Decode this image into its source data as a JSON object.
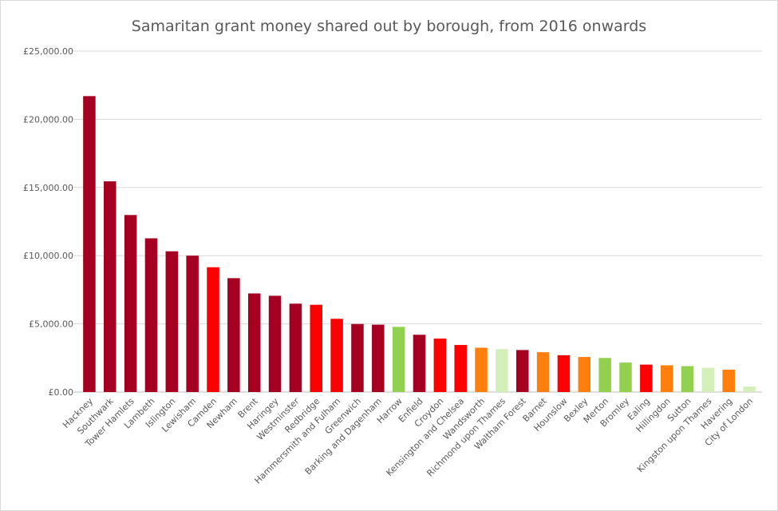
{
  "chart_data": {
    "type": "bar",
    "title": "Samaritan grant money shared out by borough, from 2016 onwards",
    "xlabel": "",
    "ylabel": "",
    "ylim": [
      0,
      25000
    ],
    "yticks": [
      0,
      5000,
      10000,
      15000,
      20000,
      25000
    ],
    "ytick_labels": [
      "£0.00",
      "£5,000.00",
      "£10,000.00",
      "£15,000.00",
      "£20,000.00",
      "£25,000.00"
    ],
    "grid": true,
    "legend": "none",
    "categories": [
      "Hackney",
      "Southwark",
      "Tower Hamlets",
      "Lambeth",
      "Islington",
      "Lewisham",
      "Camden",
      "Newham",
      "Brent",
      "Haringey",
      "Westminster",
      "Redbridge",
      "Hammersmith and Fulham",
      "Greenwich",
      "Barking and Dagenham",
      "Harrow",
      "Enfield",
      "Croydon",
      "Kensington and Chelsea",
      "Wandsworth",
      "Richmond upon Thames",
      "Waltham Forest",
      "Barnet",
      "Hounslow",
      "Bexley",
      "Merton",
      "Bromley",
      "Ealing",
      "Hillingdon",
      "Sutton",
      "Kingston upon Thames",
      "Havering",
      "City of London"
    ],
    "values": [
      21700,
      15450,
      12980,
      11270,
      10320,
      10000,
      9150,
      8350,
      7230,
      7060,
      6480,
      6400,
      5370,
      4990,
      4940,
      4780,
      4200,
      3920,
      3450,
      3250,
      3150,
      3080,
      2920,
      2700,
      2570,
      2500,
      2160,
      2010,
      1960,
      1900,
      1780,
      1640,
      400
    ],
    "bar_colors": [
      "#a50021",
      "#a50021",
      "#a50021",
      "#a50021",
      "#a50021",
      "#a50021",
      "#ff0000",
      "#a50021",
      "#a50021",
      "#a50021",
      "#a50021",
      "#ff0000",
      "#ff0000",
      "#a50021",
      "#a50021",
      "#92d050",
      "#a50021",
      "#ff0000",
      "#ff0000",
      "#ff7f0e",
      "#d4f0b8",
      "#a50021",
      "#ff7f0e",
      "#ff0000",
      "#ff7f0e",
      "#92d050",
      "#92d050",
      "#ff0000",
      "#ff7f0e",
      "#92d050",
      "#d4f0b8",
      "#ff7f0e",
      "#d4f0b8"
    ]
  }
}
